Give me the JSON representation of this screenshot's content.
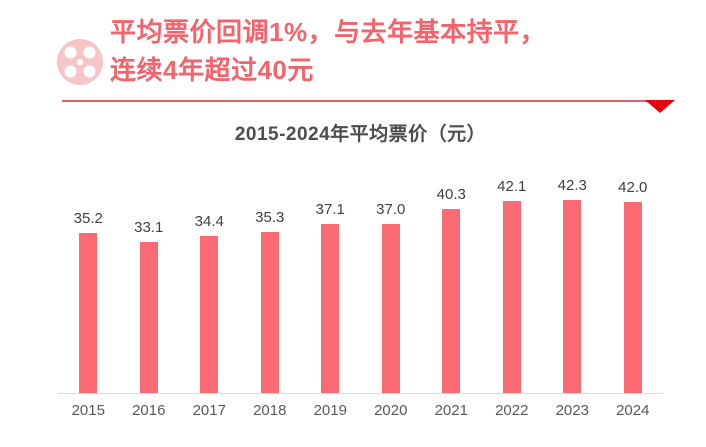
{
  "header": {
    "icon": "film-reel-icon",
    "headline_line1": "平均票价回调1%，与去年基本持平，",
    "headline_line2": "连续4年超过40元"
  },
  "colors": {
    "headline_pink": "#f4636c",
    "bar_pink": "#fa6a72",
    "icon_pink": "#f7c5c8",
    "divider_red": "#d9666c",
    "triangle_red": "#e60012",
    "value_label_gray": "#3f3f3f",
    "tick_gray": "#595959",
    "title_gray": "#4d4d4d",
    "axis_line_gray": "#dcdcdc"
  },
  "chart_data": {
    "type": "bar",
    "title": "2015-2024年平均票价（元）",
    "categories": [
      "2015",
      "2016",
      "2017",
      "2018",
      "2019",
      "2020",
      "2021",
      "2022",
      "2023",
      "2024"
    ],
    "values": [
      35.2,
      33.1,
      34.4,
      35.3,
      37.1,
      37.0,
      40.3,
      42.1,
      42.3,
      42.0
    ],
    "value_labels": [
      "35.2",
      "33.1",
      "34.4",
      "35.3",
      "37.1",
      "37.0",
      "40.3",
      "42.1",
      "42.3",
      "42.0"
    ],
    "xlabel": "",
    "ylabel": "",
    "ylim": [
      0,
      45
    ],
    "grid": false,
    "legend": false,
    "bar_labels_visible": true
  }
}
